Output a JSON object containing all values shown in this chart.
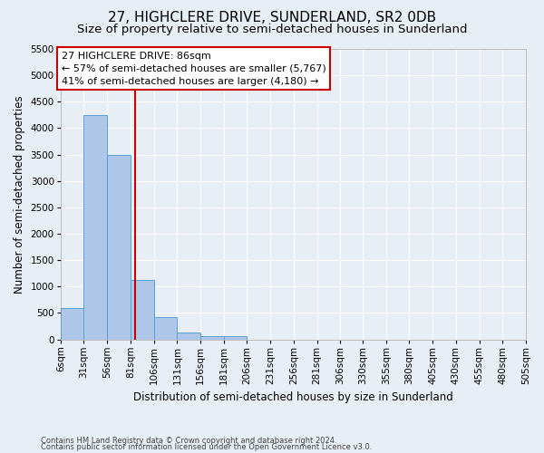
{
  "title": "27, HIGHCLERE DRIVE, SUNDERLAND, SR2 0DB",
  "subtitle": "Size of property relative to semi-detached houses in Sunderland",
  "xlabel": "Distribution of semi-detached houses by size in Sunderland",
  "ylabel": "Number of semi-detached properties",
  "footnote1": "Contains HM Land Registry data © Crown copyright and database right 2024.",
  "footnote2": "Contains public sector information licensed under the Open Government Licence v3.0.",
  "annotation_title": "27 HIGHCLERE DRIVE: 86sqm",
  "annotation_line1": "← 57% of semi-detached houses are smaller (5,767)",
  "annotation_line2": "41% of semi-detached houses are larger (4,180) →",
  "bar_edges": [
    6,
    31,
    56,
    81,
    106,
    131,
    156,
    181,
    206,
    231,
    256,
    281,
    306,
    330,
    355,
    380,
    405,
    430,
    455,
    480,
    505
  ],
  "bar_values": [
    590,
    4250,
    3500,
    1130,
    420,
    135,
    70,
    55,
    0,
    0,
    0,
    0,
    0,
    0,
    0,
    0,
    0,
    0,
    0,
    0
  ],
  "bar_color": "#aec6e8",
  "bar_edge_color": "#5a9fd4",
  "property_size": 86,
  "vline_color": "#cc0000",
  "ylim": [
    0,
    5500
  ],
  "yticks": [
    0,
    500,
    1000,
    1500,
    2000,
    2500,
    3000,
    3500,
    4000,
    4500,
    5000,
    5500
  ],
  "bg_color": "#e8eef6",
  "grid_color": "#ffffff",
  "annotation_box_color": "#ffffff",
  "annotation_box_edge": "#cc0000",
  "title_fontsize": 11,
  "subtitle_fontsize": 9.5,
  "axis_label_fontsize": 8.5,
  "tick_fontsize": 7.5,
  "annotation_fontsize": 8
}
